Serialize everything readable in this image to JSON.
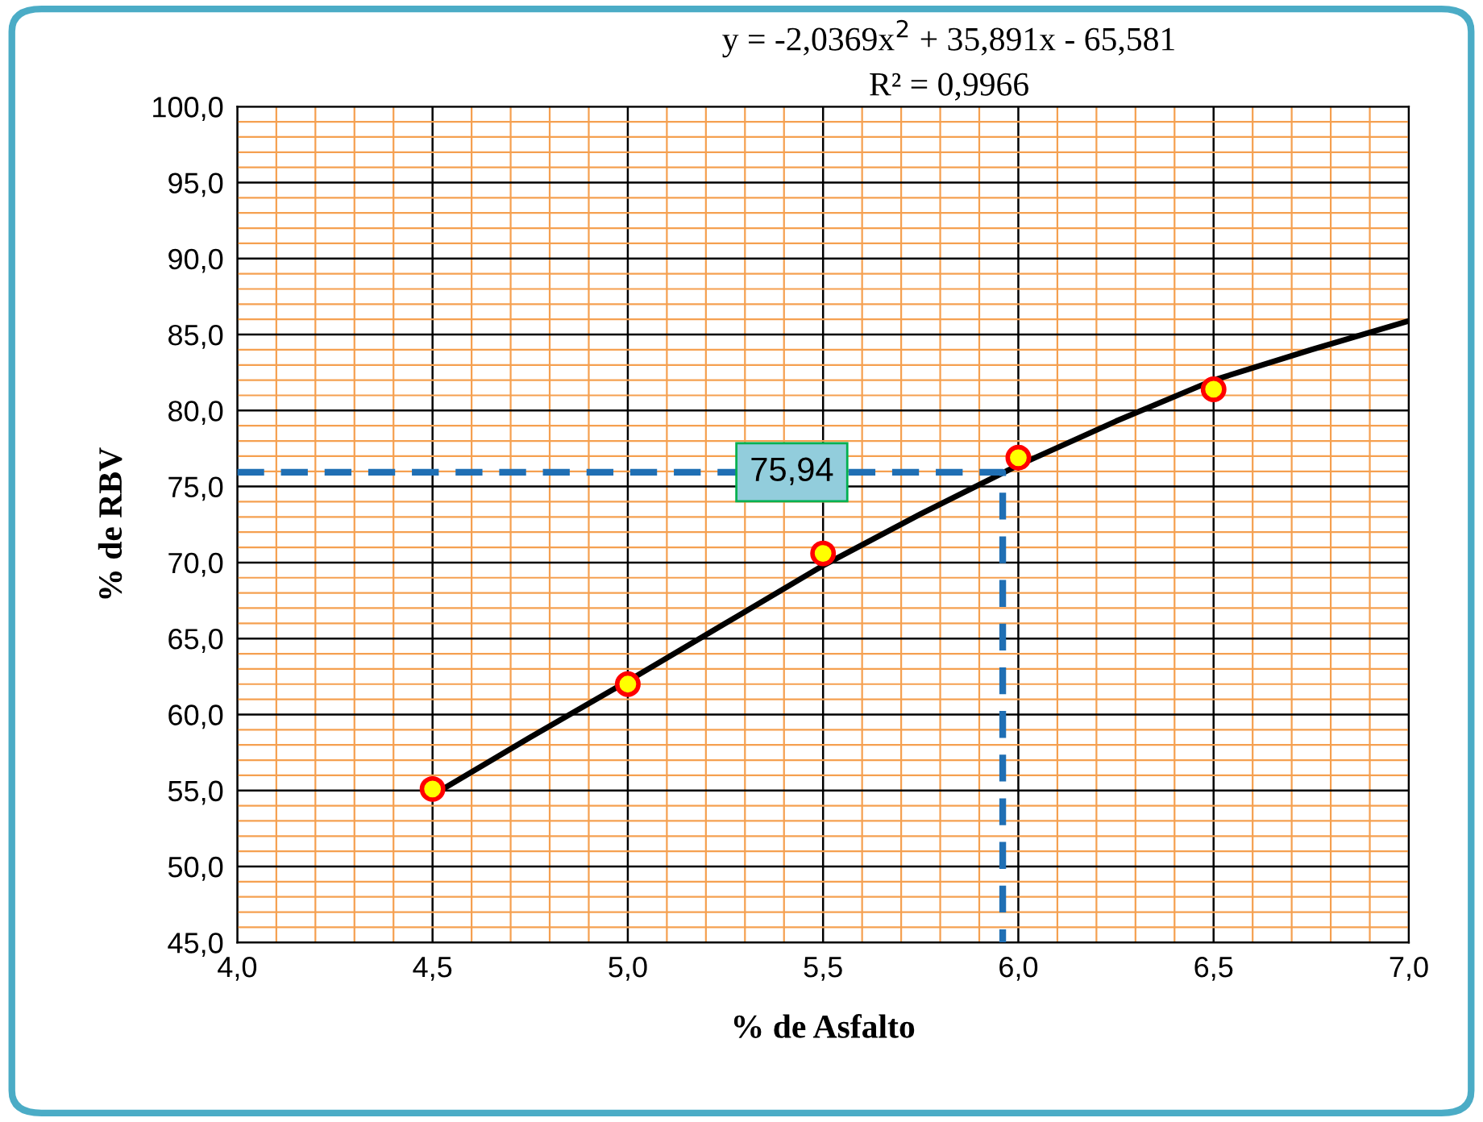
{
  "chart_data": {
    "type": "scatter",
    "title": "y = -2,0369x$^{2}$ + 35,891x - 65,581",
    "subtitle": "R² = 0,9966",
    "xlabel": "% de Asfalto",
    "ylabel": "% de RBV",
    "series": [
      {
        "type": "line",
        "color": "#000000",
        "marker": "none",
        "line_style": "solid",
        "x": [
          4.5,
          4.75,
          5.0,
          5.25,
          5.5,
          5.75,
          6.0,
          6.25,
          6.5,
          6.75,
          7.0
        ],
        "values": [
          54.7,
          58.5,
          62.2,
          66.0,
          69.8,
          73.2,
          76.4,
          79.3,
          82.0,
          84.0,
          85.9
        ]
      },
      {
        "color": "#ffff00",
        "marker": "circle",
        "x": [
          4.5,
          5.0,
          5.5,
          6.0,
          6.5
        ],
        "values": [
          55.1,
          62.0,
          70.6,
          76.9,
          81.4
        ]
      },
      {
        "type": "line",
        "color": "#1f6fb4",
        "marker": "none",
        "line_style": "dashed",
        "x": [
          4.0,
          5.96,
          5.96
        ],
        "values": [
          75.94,
          75.94,
          45.0
        ]
      }
    ],
    "annotations": [
      {
        "text": "75,94",
        "x": 5.42,
        "y": 75.94
      }
    ],
    "xlim": [
      4.0,
      7.0
    ],
    "ylim": [
      45.0,
      100.0
    ],
    "xticks": [
      {
        "value": 4.0,
        "label": "4,0"
      },
      {
        "value": 4.1,
        "label": null
      },
      {
        "value": 4.2,
        "label": null
      },
      {
        "value": 4.3,
        "label": null
      },
      {
        "value": 4.4,
        "label": null
      },
      {
        "value": 4.5,
        "label": "4,5"
      },
      {
        "value": 4.6,
        "label": null
      },
      {
        "value": 4.7,
        "label": null
      },
      {
        "value": 4.8,
        "label": null
      },
      {
        "value": 4.9,
        "label": null
      },
      {
        "value": 5.0,
        "label": "5,0"
      },
      {
        "value": 5.1,
        "label": null
      },
      {
        "value": 5.2,
        "label": null
      },
      {
        "value": 5.3,
        "label": null
      },
      {
        "value": 5.4,
        "label": null
      },
      {
        "value": 5.5,
        "label": "5,5"
      },
      {
        "value": 5.6,
        "label": null
      },
      {
        "value": 5.7,
        "label": null
      },
      {
        "value": 5.8,
        "label": null
      },
      {
        "value": 5.9,
        "label": null
      },
      {
        "value": 6.0,
        "label": "6,0"
      },
      {
        "value": 6.1,
        "label": null
      },
      {
        "value": 6.2,
        "label": null
      },
      {
        "value": 6.3,
        "label": null
      },
      {
        "value": 6.4,
        "label": null
      },
      {
        "value": 6.5,
        "label": "6,5"
      },
      {
        "value": 6.6,
        "label": null
      },
      {
        "value": 6.7,
        "label": null
      },
      {
        "value": 6.8,
        "label": null
      },
      {
        "value": 6.9,
        "label": null
      },
      {
        "value": 7.0,
        "label": "7,0"
      }
    ],
    "yticks": [
      {
        "value": 45,
        "label": "45,0"
      },
      {
        "value": 46,
        "label": null
      },
      {
        "value": 47,
        "label": null
      },
      {
        "value": 48,
        "label": null
      },
      {
        "value": 49,
        "label": null
      },
      {
        "value": 50,
        "label": "50,0"
      },
      {
        "value": 51,
        "label": null
      },
      {
        "value": 52,
        "label": null
      },
      {
        "value": 53,
        "label": null
      },
      {
        "value": 54,
        "label": null
      },
      {
        "value": 55,
        "label": "55,0"
      },
      {
        "value": 56,
        "label": null
      },
      {
        "value": 57,
        "label": null
      },
      {
        "value": 58,
        "label": null
      },
      {
        "value": 59,
        "label": null
      },
      {
        "value": 60,
        "label": "60,0"
      },
      {
        "value": 61,
        "label": null
      },
      {
        "value": 62,
        "label": null
      },
      {
        "value": 63,
        "label": null
      },
      {
        "value": 64,
        "label": null
      },
      {
        "value": 65,
        "label": "65,0"
      },
      {
        "value": 66,
        "label": null
      },
      {
        "value": 67,
        "label": null
      },
      {
        "value": 68,
        "label": null
      },
      {
        "value": 69,
        "label": null
      },
      {
        "value": 70,
        "label": "70,0"
      },
      {
        "value": 71,
        "label": null
      },
      {
        "value": 72,
        "label": null
      },
      {
        "value": 73,
        "label": null
      },
      {
        "value": 74,
        "label": null
      },
      {
        "value": 75,
        "label": "75,0"
      },
      {
        "value": 76,
        "label": null
      },
      {
        "value": 77,
        "label": null
      },
      {
        "value": 78,
        "label": null
      },
      {
        "value": 79,
        "label": null
      },
      {
        "value": 80,
        "label": "80,0"
      },
      {
        "value": 81,
        "label": null
      },
      {
        "value": 82,
        "label": null
      },
      {
        "value": 83,
        "label": null
      },
      {
        "value": 84,
        "label": null
      },
      {
        "value": 85,
        "label": "85,0"
      },
      {
        "value": 86,
        "label": null
      },
      {
        "value": 87,
        "label": null
      },
      {
        "value": 88,
        "label": null
      },
      {
        "value": 89,
        "label": null
      },
      {
        "value": 90,
        "label": "90,0"
      },
      {
        "value": 91,
        "label": null
      },
      {
        "value": 92,
        "label": null
      },
      {
        "value": 93,
        "label": null
      },
      {
        "value": 94,
        "label": null
      },
      {
        "value": 95,
        "label": "95,0"
      },
      {
        "value": 96,
        "label": null
      },
      {
        "value": 97,
        "label": null
      },
      {
        "value": 98,
        "label": null
      },
      {
        "value": 99,
        "label": null
      },
      {
        "value": 100,
        "label": "100,0"
      }
    ],
    "grid": true,
    "legend": false
  }
}
